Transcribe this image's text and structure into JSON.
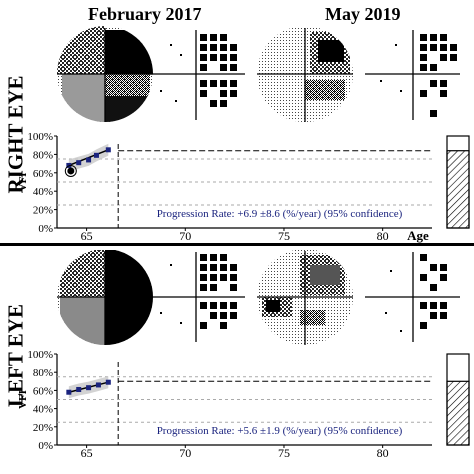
{
  "header": {
    "date_left": "February 2017",
    "date_right": "May 2019"
  },
  "panels": [
    {
      "eye_label": "RIGHT EYE",
      "progression_text": "Progression Rate: +6.9 ±8.6 (%/year) (95% confidence)"
    },
    {
      "eye_label": "LEFT EYE",
      "progression_text": "Progression Rate: +5.6 ±1.9 (%/year) (95% confidence)"
    }
  ],
  "chart_data": [
    {
      "type": "line",
      "title": "",
      "ylabel": "VFI",
      "xlabel": "Age",
      "xlim": [
        63.5,
        82.5
      ],
      "ylim": [
        0,
        100
      ],
      "x_ticks": [
        65,
        70,
        75,
        80
      ],
      "y_ticks": [
        "0%",
        "20%",
        "40%",
        "60%",
        "80%",
        "100%"
      ],
      "series": [
        {
          "x": [
            64.1,
            64.6,
            65.1,
            65.5,
            66.1
          ],
          "y": [
            68,
            71,
            74,
            79,
            85
          ]
        }
      ],
      "outlier": {
        "x": 64.2,
        "y": 62
      },
      "baseline_age": 66.6,
      "projection_level": 84,
      "reference_lines": [
        75,
        50,
        25
      ],
      "vfi_bar_value": 84,
      "grid": false
    },
    {
      "type": "line",
      "title": "",
      "ylabel": "VFI",
      "xlabel": "",
      "xlim": [
        63.5,
        82.5
      ],
      "ylim": [
        0,
        100
      ],
      "x_ticks": [
        65,
        70,
        75,
        80
      ],
      "y_ticks": [
        "0%",
        "20%",
        "40%",
        "60%",
        "80%",
        "100%"
      ],
      "series": [
        {
          "x": [
            64.1,
            64.6,
            65.1,
            65.6,
            66.1
          ],
          "y": [
            58,
            61,
            63,
            66,
            69
          ]
        }
      ],
      "baseline_age": 66.6,
      "projection_level": 70,
      "reference_lines": [
        75,
        50,
        25
      ],
      "vfi_bar_value": 70,
      "grid": false
    }
  ]
}
